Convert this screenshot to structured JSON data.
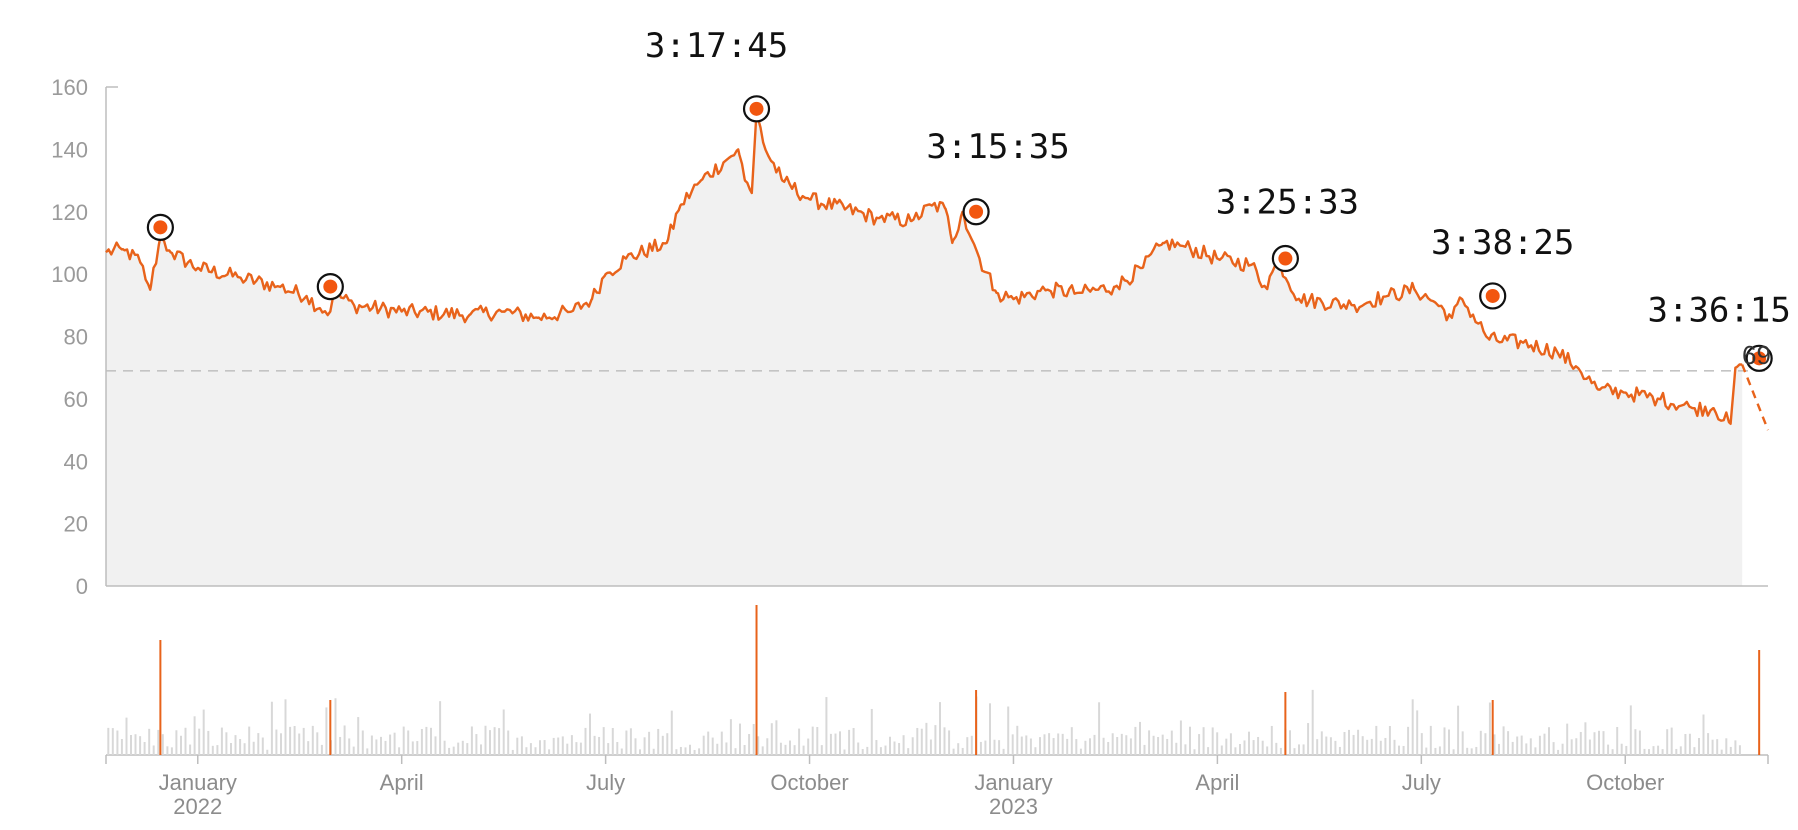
{
  "chart_data": {
    "type": "line",
    "title": "",
    "xlabel": "",
    "ylabel": "",
    "ylim": [
      0,
      160
    ],
    "y_ticks": [
      "0",
      "20",
      "40",
      "60",
      "80",
      "100",
      "120",
      "140",
      "160"
    ],
    "x_ticks": [
      {
        "label": "January",
        "sublabel": "2022",
        "t": 1.0
      },
      {
        "label": "April",
        "sublabel": "",
        "t": 4.0
      },
      {
        "label": "July",
        "sublabel": "",
        "t": 7.0
      },
      {
        "label": "October",
        "sublabel": "",
        "t": 10.0
      },
      {
        "label": "January",
        "sublabel": "2023",
        "t": 13.0
      },
      {
        "label": "April",
        "sublabel": "",
        "t": 16.0
      },
      {
        "label": "July",
        "sublabel": "",
        "t": 19.0
      },
      {
        "label": "October",
        "sublabel": "",
        "t": 22.0
      }
    ],
    "x_range": [
      -0.35,
      24.1
    ],
    "reference_line": {
      "value": 69,
      "label": "69"
    },
    "series_keypoints": [
      [
        -0.35,
        107
      ],
      [
        -0.1,
        108
      ],
      [
        0.15,
        104
      ],
      [
        0.3,
        95
      ],
      [
        0.45,
        112
      ],
      [
        0.6,
        107
      ],
      [
        1.0,
        102
      ],
      [
        1.6,
        99
      ],
      [
        2.2,
        96
      ],
      [
        2.6,
        93
      ],
      [
        2.8,
        89
      ],
      [
        2.95,
        88
      ],
      [
        3.0,
        94
      ],
      [
        3.3,
        90
      ],
      [
        4.0,
        88
      ],
      [
        5.0,
        87
      ],
      [
        5.5,
        88
      ],
      [
        6.0,
        86
      ],
      [
        6.5,
        88
      ],
      [
        6.8,
        92
      ],
      [
        7.0,
        100
      ],
      [
        7.3,
        105
      ],
      [
        7.9,
        110
      ],
      [
        8.1,
        122
      ],
      [
        8.4,
        130
      ],
      [
        8.8,
        137
      ],
      [
        8.95,
        140
      ],
      [
        9.05,
        130
      ],
      [
        9.15,
        126
      ],
      [
        9.22,
        152
      ],
      [
        9.35,
        140
      ],
      [
        9.6,
        130
      ],
      [
        10.0,
        124
      ],
      [
        11.0,
        118
      ],
      [
        11.5,
        117
      ],
      [
        11.8,
        122
      ],
      [
        12.0,
        121
      ],
      [
        12.1,
        110
      ],
      [
        12.25,
        120
      ],
      [
        12.5,
        105
      ],
      [
        12.75,
        94
      ],
      [
        13.0,
        92
      ],
      [
        13.5,
        95
      ],
      [
        14.0,
        94
      ],
      [
        14.5,
        96
      ],
      [
        14.9,
        102
      ],
      [
        15.2,
        110
      ],
      [
        15.5,
        109
      ],
      [
        16.0,
        105
      ],
      [
        16.5,
        103
      ],
      [
        16.7,
        96
      ],
      [
        16.9,
        104
      ],
      [
        17.2,
        92
      ],
      [
        18.0,
        90
      ],
      [
        18.5,
        93
      ],
      [
        18.9,
        95
      ],
      [
        19.2,
        91
      ],
      [
        19.45,
        86
      ],
      [
        19.6,
        92
      ],
      [
        20.0,
        79
      ],
      [
        20.5,
        78
      ],
      [
        21.0,
        75
      ],
      [
        21.3,
        70
      ],
      [
        21.6,
        63
      ],
      [
        22.0,
        62
      ],
      [
        22.5,
        60
      ],
      [
        23.0,
        57
      ],
      [
        23.3,
        57
      ],
      [
        23.55,
        52
      ],
      [
        23.62,
        70
      ],
      [
        23.72,
        71
      ]
    ],
    "forecast": [
      [
        23.72,
        71
      ],
      [
        24.1,
        50
      ]
    ],
    "highlights": [
      {
        "t": 0.45,
        "value": 115,
        "label": ""
      },
      {
        "t": 2.95,
        "value": 96,
        "label": ""
      },
      {
        "t": 9.22,
        "value": 153,
        "label": "3:17:45"
      },
      {
        "t": 12.45,
        "value": 120,
        "label": "3:15:35"
      },
      {
        "t": 17.0,
        "value": 105,
        "label": "3:25:33"
      },
      {
        "t": 20.05,
        "value": 93,
        "label": "3:38:25"
      },
      {
        "t": 23.97,
        "value": 73,
        "label": "3:36:15"
      }
    ],
    "volume_ylim": [
      0,
      100
    ]
  },
  "colors": {
    "line": "#e8631b",
    "marker": "#f2560f",
    "area": "#f1f1f1",
    "axis": "#bdbdbd",
    "reference": "#c4c4c4",
    "volume_bar": "#d8d8d8",
    "volume_highlight": "#e8631b"
  }
}
